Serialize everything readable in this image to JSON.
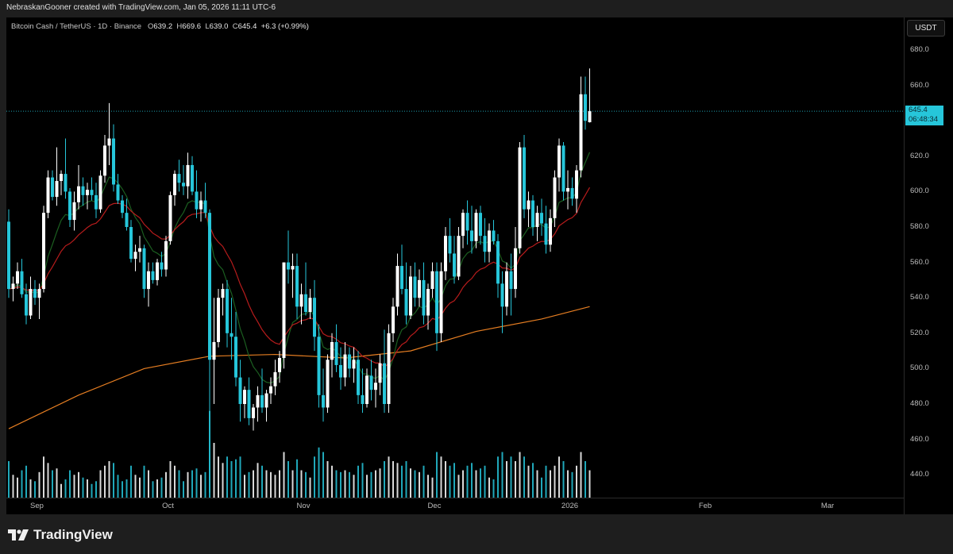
{
  "header": {
    "credit": "NebraskanGooner created with TradingView.com, Jan 05, 2026 11:11 UTC-6"
  },
  "legend": {
    "symbol": "Bitcoin Cash / TetherUS · 1D · Binance",
    "o_label": "O",
    "o": "639.2",
    "h_label": "H",
    "h": "669.6",
    "l_label": "L",
    "l": "639.0",
    "c_label": "C",
    "c": "645.4",
    "change": "+6.3 (+0.99%)"
  },
  "price_axis": {
    "currency": "USDT",
    "ticks": [
      "680.0",
      "660.0",
      "620.0",
      "600.0",
      "580.0",
      "560.0",
      "540.0",
      "520.0",
      "500.0",
      "480.0",
      "460.0",
      "440.0"
    ],
    "last_price": "645.4",
    "countdown": "06:48:34"
  },
  "footer": {
    "brand": "TradingView"
  },
  "colors": {
    "up": "#ffffff",
    "down": "#26c6da",
    "ma_fast": "#1b5e20",
    "ma_mid": "#b71c1c",
    "ma_slow": "#e67e22",
    "last_price_line": "#26c6da",
    "background": "#000000"
  },
  "chart_data": {
    "type": "candlestick",
    "title": "",
    "ylim": [
      425,
      690
    ],
    "y_scale": "linear",
    "grid": false,
    "x_ticks": [
      {
        "label": "Sep",
        "date": "2025-09-01"
      },
      {
        "label": "Oct",
        "date": "2025-10-01"
      },
      {
        "label": "Nov",
        "date": "2025-11-01"
      },
      {
        "label": "Dec",
        "date": "2025-12-01"
      },
      {
        "label": "2026",
        "date": "2026-01-01"
      },
      {
        "label": "Feb",
        "date": "2026-02-01"
      },
      {
        "label": "Mar",
        "date": "2026-03-01"
      }
    ],
    "x_range": [
      "2025-08-24",
      "2026-03-28"
    ],
    "candle_fields": [
      "date",
      "open",
      "high",
      "low",
      "close",
      "volume_relative"
    ],
    "candles": [
      [
        "2025-08-25",
        583,
        590,
        540,
        545,
        40
      ],
      [
        "2025-08-26",
        545,
        552,
        538,
        548,
        25
      ],
      [
        "2025-08-27",
        548,
        560,
        545,
        555,
        22
      ],
      [
        "2025-08-28",
        555,
        562,
        540,
        542,
        30
      ],
      [
        "2025-08-29",
        542,
        548,
        525,
        530,
        35
      ],
      [
        "2025-08-30",
        530,
        552,
        528,
        545,
        20
      ],
      [
        "2025-08-31",
        545,
        550,
        536,
        540,
        18
      ],
      [
        "2025-09-01",
        540,
        548,
        528,
        545,
        28
      ],
      [
        "2025-09-02",
        545,
        592,
        543,
        588,
        45
      ],
      [
        "2025-09-03",
        588,
        612,
        585,
        608,
        38
      ],
      [
        "2025-09-04",
        608,
        612,
        595,
        597,
        30
      ],
      [
        "2025-09-05",
        597,
        625,
        592,
        606,
        32
      ],
      [
        "2025-09-06",
        606,
        612,
        598,
        610,
        15
      ],
      [
        "2025-09-07",
        610,
        630,
        596,
        600,
        20
      ],
      [
        "2025-09-08",
        600,
        602,
        580,
        584,
        30
      ],
      [
        "2025-09-09",
        584,
        600,
        578,
        594,
        25
      ],
      [
        "2025-09-10",
        594,
        615,
        590,
        603,
        28
      ],
      [
        "2025-09-11",
        603,
        608,
        592,
        598,
        22
      ],
      [
        "2025-09-12",
        598,
        605,
        590,
        601,
        20
      ],
      [
        "2025-09-13",
        601,
        608,
        595,
        598,
        15
      ],
      [
        "2025-09-14",
        598,
        605,
        585,
        590,
        18
      ],
      [
        "2025-09-15",
        590,
        612,
        588,
        609,
        30
      ],
      [
        "2025-09-16",
        609,
        632,
        605,
        626,
        35
      ],
      [
        "2025-09-17",
        626,
        650,
        615,
        630,
        40
      ],
      [
        "2025-09-18",
        630,
        638,
        600,
        604,
        38
      ],
      [
        "2025-09-19",
        604,
        610,
        593,
        595,
        25
      ],
      [
        "2025-09-20",
        595,
        598,
        585,
        588,
        18
      ],
      [
        "2025-09-21",
        588,
        596,
        578,
        580,
        20
      ],
      [
        "2025-09-22",
        580,
        584,
        560,
        562,
        35
      ],
      [
        "2025-09-23",
        562,
        570,
        555,
        566,
        25
      ],
      [
        "2025-09-24",
        566,
        575,
        560,
        568,
        22
      ],
      [
        "2025-09-25",
        568,
        570,
        540,
        545,
        35
      ],
      [
        "2025-09-26",
        545,
        560,
        535,
        555,
        30
      ],
      [
        "2025-09-27",
        555,
        560,
        548,
        550,
        18
      ],
      [
        "2025-09-28",
        550,
        562,
        547,
        560,
        20
      ],
      [
        "2025-09-29",
        560,
        566,
        552,
        556,
        22
      ],
      [
        "2025-09-30",
        556,
        575,
        552,
        572,
        28
      ],
      [
        "2025-10-01",
        572,
        600,
        570,
        598,
        40
      ],
      [
        "2025-10-02",
        598,
        612,
        592,
        610,
        35
      ],
      [
        "2025-10-03",
        610,
        618,
        600,
        605,
        30
      ],
      [
        "2025-10-04",
        605,
        615,
        598,
        603,
        18
      ],
      [
        "2025-10-05",
        603,
        622,
        596,
        615,
        28
      ],
      [
        "2025-10-06",
        615,
        620,
        598,
        600,
        30
      ],
      [
        "2025-10-07",
        600,
        612,
        585,
        590,
        32
      ],
      [
        "2025-10-08",
        590,
        600,
        583,
        595,
        25
      ],
      [
        "2025-10-09",
        595,
        605,
        585,
        588,
        28
      ],
      [
        "2025-10-10",
        588,
        590,
        430,
        505,
        95
      ],
      [
        "2025-10-11",
        505,
        540,
        480,
        515,
        60
      ],
      [
        "2025-10-12",
        515,
        545,
        512,
        540,
        45
      ],
      [
        "2025-10-13",
        540,
        548,
        530,
        545,
        38
      ],
      [
        "2025-10-14",
        545,
        550,
        512,
        520,
        45
      ],
      [
        "2025-10-15",
        520,
        540,
        505,
        518,
        40
      ],
      [
        "2025-10-16",
        518,
        532,
        490,
        495,
        42
      ],
      [
        "2025-10-17",
        495,
        505,
        470,
        480,
        45
      ],
      [
        "2025-10-18",
        480,
        490,
        472,
        488,
        25
      ],
      [
        "2025-10-19",
        488,
        495,
        468,
        472,
        28
      ],
      [
        "2025-10-20",
        472,
        480,
        465,
        478,
        30
      ],
      [
        "2025-10-21",
        478,
        490,
        470,
        485,
        38
      ],
      [
        "2025-10-22",
        485,
        500,
        475,
        478,
        35
      ],
      [
        "2025-10-23",
        478,
        488,
        470,
        486,
        30
      ],
      [
        "2025-10-24",
        486,
        495,
        480,
        490,
        28
      ],
      [
        "2025-10-25",
        490,
        505,
        485,
        498,
        25
      ],
      [
        "2025-10-26",
        498,
        510,
        492,
        506,
        30
      ],
      [
        "2025-10-27",
        506,
        560,
        500,
        560,
        50
      ],
      [
        "2025-10-28",
        560,
        578,
        548,
        556,
        40
      ],
      [
        "2025-10-29",
        556,
        565,
        540,
        558,
        30
      ],
      [
        "2025-10-30",
        558,
        565,
        528,
        535,
        42
      ],
      [
        "2025-10-31",
        535,
        548,
        525,
        542,
        30
      ],
      [
        "2025-11-01",
        542,
        560,
        530,
        532,
        28
      ],
      [
        "2025-11-02",
        532,
        545,
        528,
        540,
        22
      ],
      [
        "2025-11-03",
        540,
        550,
        510,
        518,
        45
      ],
      [
        "2025-11-04",
        518,
        525,
        478,
        485,
        55
      ],
      [
        "2025-11-05",
        485,
        500,
        470,
        478,
        50
      ],
      [
        "2025-11-06",
        478,
        508,
        475,
        505,
        40
      ],
      [
        "2025-11-07",
        505,
        520,
        495,
        515,
        35
      ],
      [
        "2025-11-08",
        515,
        525,
        498,
        502,
        30
      ],
      [
        "2025-11-09",
        502,
        512,
        488,
        495,
        28
      ],
      [
        "2025-11-10",
        495,
        515,
        490,
        508,
        30
      ],
      [
        "2025-11-11",
        508,
        512,
        495,
        500,
        28
      ],
      [
        "2025-11-12",
        500,
        512,
        492,
        505,
        25
      ],
      [
        "2025-11-13",
        505,
        510,
        480,
        485,
        35
      ],
      [
        "2025-11-14",
        485,
        500,
        475,
        480,
        38
      ],
      [
        "2025-11-15",
        480,
        500,
        478,
        496,
        25
      ],
      [
        "2025-11-16",
        496,
        505,
        482,
        488,
        28
      ],
      [
        "2025-11-17",
        488,
        500,
        478,
        492,
        30
      ],
      [
        "2025-11-18",
        492,
        508,
        485,
        503,
        32
      ],
      [
        "2025-11-19",
        503,
        522,
        475,
        480,
        40
      ],
      [
        "2025-11-20",
        480,
        525,
        475,
        520,
        45
      ],
      [
        "2025-11-21",
        520,
        540,
        515,
        535,
        40
      ],
      [
        "2025-11-22",
        535,
        565,
        530,
        558,
        38
      ],
      [
        "2025-11-23",
        558,
        570,
        542,
        545,
        35
      ],
      [
        "2025-11-24",
        545,
        560,
        525,
        530,
        40
      ],
      [
        "2025-11-25",
        530,
        558,
        528,
        552,
        32
      ],
      [
        "2025-11-26",
        552,
        560,
        535,
        540,
        30
      ],
      [
        "2025-11-27",
        540,
        556,
        535,
        550,
        28
      ],
      [
        "2025-11-28",
        550,
        560,
        525,
        530,
        35
      ],
      [
        "2025-11-29",
        530,
        548,
        522,
        545,
        25
      ],
      [
        "2025-11-30",
        545,
        560,
        540,
        555,
        22
      ],
      [
        "2025-12-01",
        555,
        560,
        510,
        520,
        50
      ],
      [
        "2025-12-02",
        520,
        560,
        515,
        555,
        45
      ],
      [
        "2025-12-03",
        555,
        580,
        550,
        575,
        40
      ],
      [
        "2025-12-04",
        575,
        585,
        560,
        565,
        35
      ],
      [
        "2025-12-05",
        565,
        575,
        548,
        552,
        38
      ],
      [
        "2025-12-06",
        552,
        580,
        550,
        575,
        25
      ],
      [
        "2025-12-07",
        575,
        590,
        568,
        588,
        30
      ],
      [
        "2025-12-08",
        588,
        595,
        570,
        578,
        35
      ],
      [
        "2025-12-09",
        578,
        592,
        565,
        572,
        38
      ],
      [
        "2025-12-10",
        572,
        590,
        568,
        588,
        30
      ],
      [
        "2025-12-11",
        588,
        592,
        570,
        575,
        32
      ],
      [
        "2025-12-12",
        575,
        585,
        560,
        566,
        35
      ],
      [
        "2025-12-13",
        566,
        582,
        560,
        578,
        22
      ],
      [
        "2025-12-14",
        578,
        584,
        570,
        572,
        20
      ],
      [
        "2025-12-15",
        572,
        576,
        540,
        548,
        45
      ],
      [
        "2025-12-16",
        548,
        555,
        520,
        535,
        50
      ],
      [
        "2025-12-17",
        535,
        560,
        530,
        555,
        40
      ],
      [
        "2025-12-18",
        555,
        565,
        530,
        545,
        45
      ],
      [
        "2025-12-19",
        545,
        580,
        540,
        568,
        40
      ],
      [
        "2025-12-20",
        568,
        628,
        565,
        625,
        50
      ],
      [
        "2025-12-21",
        625,
        632,
        585,
        590,
        45
      ],
      [
        "2025-12-22",
        590,
        600,
        580,
        595,
        35
      ],
      [
        "2025-12-23",
        595,
        598,
        575,
        580,
        38
      ],
      [
        "2025-12-24",
        580,
        592,
        572,
        588,
        30
      ],
      [
        "2025-12-25",
        588,
        596,
        575,
        582,
        22
      ],
      [
        "2025-12-26",
        582,
        592,
        565,
        570,
        35
      ],
      [
        "2025-12-27",
        570,
        590,
        566,
        585,
        30
      ],
      [
        "2025-12-28",
        585,
        612,
        580,
        608,
        35
      ],
      [
        "2025-12-29",
        608,
        630,
        600,
        626,
        45
      ],
      [
        "2025-12-30",
        626,
        628,
        595,
        600,
        40
      ],
      [
        "2025-12-31",
        600,
        612,
        590,
        602,
        30
      ],
      [
        "2026-01-01",
        602,
        608,
        592,
        596,
        28
      ],
      [
        "2026-01-02",
        596,
        615,
        588,
        612,
        35
      ],
      [
        "2026-01-03",
        612,
        665,
        608,
        655,
        50
      ],
      [
        "2026-01-04",
        655,
        665,
        635,
        640,
        40
      ],
      [
        "2026-01-05",
        639.2,
        669.6,
        639.0,
        645.4,
        30
      ]
    ],
    "slow_ma": [
      [
        "2025-08-25",
        466
      ],
      [
        "2025-09-10",
        485
      ],
      [
        "2025-09-25",
        500
      ],
      [
        "2025-10-10",
        507
      ],
      [
        "2025-10-25",
        508
      ],
      [
        "2025-11-10",
        506
      ],
      [
        "2025-11-25",
        510
      ],
      [
        "2025-12-10",
        521
      ],
      [
        "2025-12-25",
        528
      ],
      [
        "2026-01-05",
        535
      ]
    ],
    "last_price": 645.4
  }
}
